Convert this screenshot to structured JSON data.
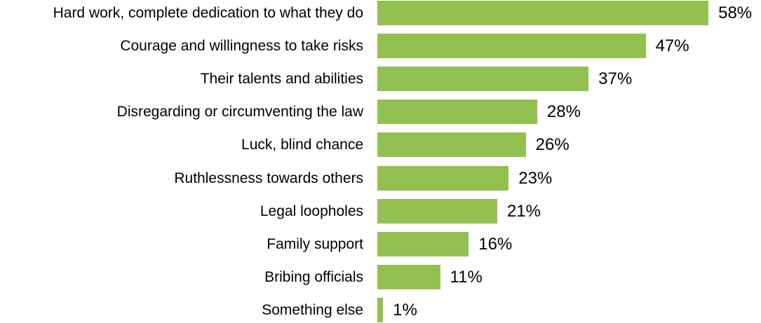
{
  "chart_data": {
    "type": "bar",
    "orientation": "horizontal",
    "title": "",
    "xlabel": "",
    "ylabel": "",
    "categories": [
      "Hard work, complete dedication to what they do",
      "Courage and willingness to take risks",
      "Their talents and abilities",
      "Disregarding or circumventing the law",
      "Luck, blind chance",
      "Ruthlessness towards others",
      "Legal loopholes",
      "Family support",
      "Bribing officials",
      "Something else"
    ],
    "values": [
      58,
      47,
      37,
      28,
      26,
      23,
      21,
      16,
      11,
      1
    ],
    "value_labels": [
      "58%",
      "47%",
      "37%",
      "28%",
      "26%",
      "23%",
      "21%",
      "16%",
      "11%",
      "1%"
    ],
    "unit": "%",
    "xlim": [
      0,
      58
    ],
    "grid": false,
    "legend": null,
    "bar_color": "#92c050"
  }
}
